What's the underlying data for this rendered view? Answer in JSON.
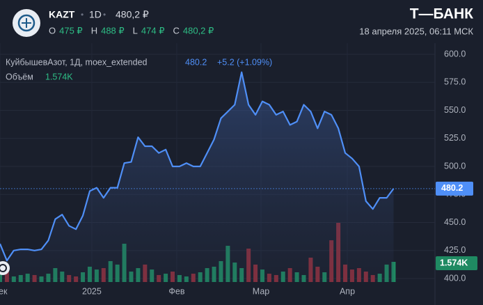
{
  "header": {
    "ticker": "KAZT",
    "interval": "1D",
    "price": "480,2 ₽",
    "ohlc": [
      {
        "label": "O",
        "value": "475 ₽"
      },
      {
        "label": "H",
        "value": "488 ₽"
      },
      {
        "label": "L",
        "value": "474 ₽"
      },
      {
        "label": "C",
        "value": "480,2 ₽"
      }
    ],
    "brand": "Т—БАНК",
    "datetime": "18 апреля 2025, 06:11 МСК"
  },
  "chart_data": {
    "type": "line",
    "change": "+5.2 (+1.09%)",
    "series": [
      {
        "name": "КуйбышевАзот, 1Д, moex_extended",
        "color": "#4f8ff7",
        "values": [
          431,
          416,
          425,
          426,
          426,
          425,
          426,
          434,
          453,
          457,
          447,
          444,
          456,
          478,
          481,
          472,
          481,
          481,
          503,
          504,
          526,
          518,
          518,
          512,
          515,
          500,
          500,
          503,
          500,
          500,
          512,
          524,
          543,
          549,
          555,
          584,
          555,
          546,
          558,
          555,
          546,
          549,
          537,
          540,
          555,
          549,
          534,
          549,
          546,
          534,
          512,
          507,
          500,
          469,
          462,
          472,
          472,
          480.2
        ]
      },
      {
        "name": "Объём",
        "axis": "y2",
        "up_color": "#1f8a62",
        "down_color": "#8e2f3c",
        "values": [
          650,
          815,
          435,
          545,
          650,
          545,
          435,
          650,
          1085,
          815,
          545,
          435,
          760,
          1195,
          975,
          1085,
          1630,
          1360,
          2985,
          815,
          1085,
          1360,
          975,
          545,
          650,
          815,
          545,
          435,
          650,
          760,
          1085,
          1195,
          1630,
          2825,
          1520,
          1085,
          2605,
          1360,
          975,
          650,
          545,
          815,
          1085,
          760,
          545,
          1900,
          1195,
          760,
          3255,
          4615,
          1360,
          975,
          1085,
          815,
          545,
          650,
          1360,
          1574
        ],
        "value_labels": [
          null,
          null,
          null,
          null,
          null,
          null,
          null,
          null,
          null,
          null,
          null,
          null,
          null,
          null,
          null,
          null,
          null,
          null,
          null,
          null,
          null,
          null,
          null,
          null,
          null,
          null,
          null,
          null,
          null,
          null,
          null,
          null,
          null,
          null,
          null,
          null,
          null,
          null,
          null,
          null,
          null,
          null,
          null,
          null,
          null,
          null,
          null,
          null,
          null,
          null,
          null,
          null,
          null,
          null,
          null,
          null,
          null,
          "1.574K"
        ]
      }
    ],
    "ylim": [
      396.9,
      606.2
    ],
    "yticks": [
      {
        "value": 400,
        "label": "400.0"
      },
      {
        "value": 425,
        "label": "425.0"
      },
      {
        "value": 450,
        "label": "450.0"
      },
      {
        "value": 475,
        "label": "475.0"
      },
      {
        "value": 500,
        "label": "500.0"
      },
      {
        "value": 525,
        "label": "525.0"
      },
      {
        "value": 550,
        "label": "550.0"
      },
      {
        "value": 575,
        "label": "575.0"
      },
      {
        "value": 600,
        "label": "600.0"
      }
    ],
    "y2lim": [
      0,
      18290
    ],
    "xlim": [
      0,
      63
    ],
    "xticks": [
      {
        "value": 0,
        "label": "Дек"
      },
      {
        "value": 13.3,
        "label": "2025"
      },
      {
        "value": 25.6,
        "label": "Фев"
      },
      {
        "value": 37.8,
        "label": "Мар"
      },
      {
        "value": 50.3,
        "label": "Апр"
      }
    ],
    "grid": true
  }
}
